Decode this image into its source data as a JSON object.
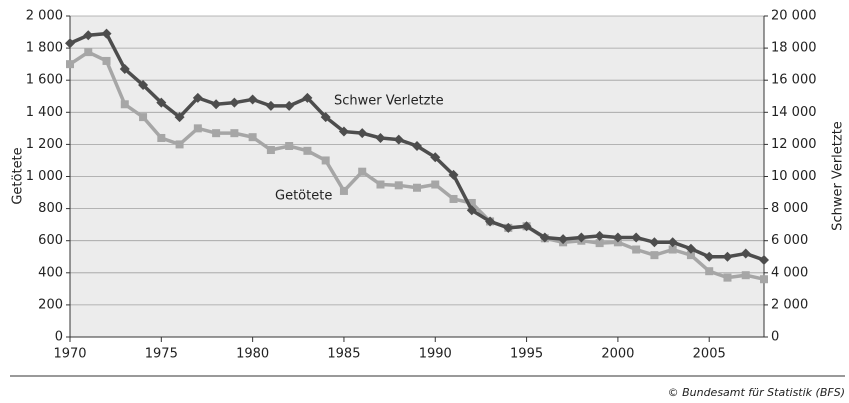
{
  "chart_data": {
    "type": "line",
    "ylabel": "Getötete",
    "y2label": "Schwer Verletzte",
    "annotations": [
      "Schwer Verletzte",
      "Getötete"
    ],
    "source": "© Bundesamt für Statistik (BFS)",
    "x": [
      1970,
      1971,
      1972,
      1973,
      1974,
      1975,
      1976,
      1977,
      1978,
      1979,
      1980,
      1981,
      1982,
      1983,
      1984,
      1985,
      1986,
      1987,
      1988,
      1989,
      1990,
      1991,
      1992,
      1993,
      1994,
      1995,
      1996,
      1997,
      1998,
      1999,
      2000,
      2001,
      2002,
      2003,
      2004,
      2005,
      2006,
      2007,
      2008
    ],
    "xlim": [
      1970,
      2008
    ],
    "xticks": [
      1970,
      1975,
      1980,
      1985,
      1990,
      1995,
      2000,
      2005
    ],
    "ylim": [
      0,
      2000
    ],
    "yticks": [
      0,
      200,
      400,
      600,
      800,
      {
        "value": 1000,
        "label": "1 000"
      },
      {
        "value": 1200,
        "label": "1 200"
      },
      {
        "value": 1400,
        "label": "1 400"
      },
      {
        "value": 1600,
        "label": "1 600"
      },
      {
        "value": 1800,
        "label": "1 800"
      },
      {
        "value": 2000,
        "label": "2 000"
      }
    ],
    "y2lim": [
      0,
      20000
    ],
    "y2ticks": [
      0,
      {
        "value": 2000,
        "label": "2 000"
      },
      {
        "value": 4000,
        "label": "4 000"
      },
      {
        "value": 6000,
        "label": "6 000"
      },
      {
        "value": 8000,
        "label": "8 000"
      },
      {
        "value": 10000,
        "label": "10 000"
      },
      {
        "value": 12000,
        "label": "12 000"
      },
      {
        "value": 14000,
        "label": "14 000"
      },
      {
        "value": 16000,
        "label": "16 000"
      },
      {
        "value": 18000,
        "label": "18 000"
      },
      {
        "value": 20000,
        "label": "20 000"
      }
    ],
    "grid": true,
    "series": [
      {
        "name": "Getötete",
        "color": "#a6a6a6",
        "marker": "square",
        "axis": "y",
        "values": [
          1700,
          1775,
          1720,
          1450,
          1370,
          1240,
          1200,
          1300,
          1270,
          1270,
          1245,
          1165,
          1190,
          1160,
          1100,
          910,
          1030,
          950,
          945,
          930,
          950,
          860,
          835,
          720,
          680,
          690,
          615,
          590,
          600,
          585,
          590,
          545,
          510,
          545,
          510,
          410,
          370,
          385,
          360
        ]
      },
      {
        "name": "Schwer Verletzte",
        "color": "#4d4d4d",
        "marker": "diamond",
        "axis": "y2",
        "values": [
          18300,
          18800,
          18900,
          16700,
          15700,
          14600,
          13700,
          14900,
          14500,
          14600,
          14800,
          14400,
          14400,
          14900,
          13700,
          12800,
          12700,
          12400,
          12300,
          11900,
          11200,
          10100,
          7900,
          7200,
          6800,
          6900,
          6200,
          6100,
          6200,
          6300,
          6200,
          6200,
          5900,
          5900,
          5500,
          5000,
          5000,
          5200,
          4800
        ]
      }
    ]
  }
}
